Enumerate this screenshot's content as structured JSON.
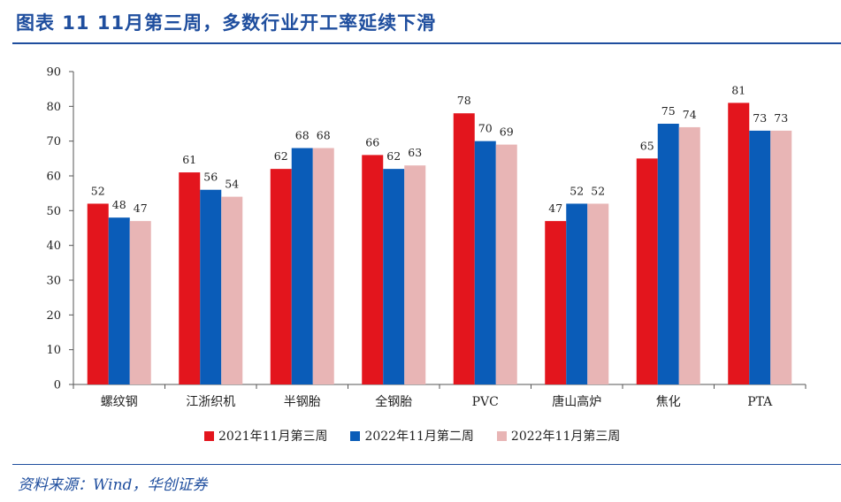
{
  "figure": {
    "title": "图表 11   11月第三周，多数行业开工率延续下滑",
    "source": "资料来源：Wind，华创证券"
  },
  "colors": {
    "series": [
      "#e3151d",
      "#0a5cb8",
      "#e8b5b5"
    ],
    "accent": "#1f4e9e"
  },
  "chart_data": {
    "type": "bar",
    "title": "",
    "xlabel": "",
    "ylabel": "",
    "ylim": [
      0,
      90
    ],
    "yticks": [
      0,
      10,
      20,
      30,
      40,
      50,
      60,
      70,
      80,
      90
    ],
    "grid": false,
    "legend_position": "bottom",
    "categories": [
      "螺纹钢",
      "江浙织机",
      "半钢胎",
      "全钢胎",
      "PVC",
      "唐山高炉",
      "焦化",
      "PTA"
    ],
    "series": [
      {
        "name": "2021年11月第三周",
        "values": [
          52,
          61,
          62,
          66,
          78,
          47,
          65,
          81
        ]
      },
      {
        "name": "2022年11月第二周",
        "values": [
          48,
          56,
          68,
          62,
          70,
          52,
          75,
          73
        ]
      },
      {
        "name": "2022年11月第三周",
        "values": [
          47,
          54,
          68,
          63,
          69,
          52,
          74,
          73
        ]
      }
    ]
  }
}
